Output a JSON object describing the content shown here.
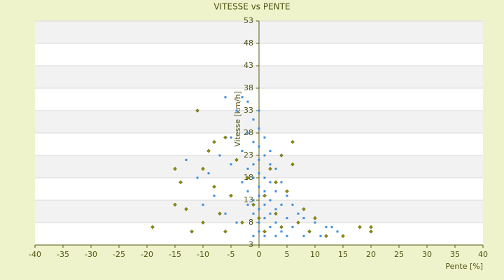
{
  "chart_data": {
    "type": "scatter",
    "title": "VITESSE vs PENTE",
    "x_label": "Pente [%]",
    "y_label": "Vitesse [km/h]",
    "xlim": [
      -40,
      40
    ],
    "xticks": [
      -40,
      -35,
      -30,
      -25,
      -20,
      -15,
      -10,
      -5,
      0,
      5,
      10,
      15,
      20,
      25,
      30,
      35,
      40
    ],
    "ylim": [
      3,
      53
    ],
    "yticks": [
      3,
      8,
      13,
      18,
      23,
      28,
      33,
      38,
      43,
      48,
      53
    ],
    "grid": true,
    "series": [
      {
        "color": "#3a8ede",
        "marker": "square",
        "x": [
          -3,
          -2,
          -4,
          -1,
          0,
          -2,
          1,
          -1,
          0,
          2,
          -3,
          1,
          0,
          -1,
          2,
          3,
          -2,
          0,
          1,
          -1,
          2,
          4,
          -3,
          0,
          1,
          3,
          -2,
          5,
          0,
          2,
          -1,
          4,
          6,
          1,
          3,
          0,
          7,
          2,
          -1,
          5,
          8,
          1,
          10,
          3,
          0,
          12,
          6,
          2,
          14,
          9,
          4,
          0,
          -1,
          1,
          3,
          5,
          8,
          -5,
          -7,
          -9,
          -11,
          -13,
          -8,
          -10,
          -6,
          -12,
          -4,
          -2,
          11,
          13,
          0,
          -6,
          -5
        ],
        "values": [
          36,
          35,
          33,
          31,
          29,
          28,
          27,
          26,
          25,
          24,
          24,
          23,
          22,
          21,
          21,
          20,
          20,
          19,
          18,
          18,
          17,
          17,
          17,
          16,
          15,
          15,
          15,
          14,
          14,
          13,
          13,
          12,
          12,
          12,
          11,
          11,
          10,
          10,
          10,
          9,
          9,
          9,
          8,
          8,
          8,
          7,
          7,
          7,
          6,
          6,
          6,
          6,
          5,
          5,
          5,
          5,
          5,
          21,
          23,
          19,
          18,
          22,
          14,
          12,
          10,
          6,
          8,
          12,
          5,
          7,
          33,
          36,
          27
        ]
      },
      {
        "color": "#8c8c00",
        "marker": "diamond",
        "x": [
          -19,
          -15,
          -14,
          -12,
          -11,
          -10,
          -9,
          -8,
          -7,
          -6,
          -5,
          -4,
          -3,
          -2,
          -1,
          0,
          1,
          2,
          3,
          4,
          5,
          6,
          7,
          8,
          9,
          10,
          12,
          15,
          18,
          20,
          20,
          -15,
          -13,
          -6,
          4,
          6,
          -8,
          -10,
          1,
          3
        ],
        "values": [
          7,
          12,
          17,
          6,
          33,
          20,
          24,
          16,
          10,
          27,
          14,
          22,
          8,
          18,
          12,
          9,
          6,
          20,
          10,
          7,
          15,
          26,
          8,
          11,
          6,
          9,
          5,
          5,
          7,
          7,
          6,
          20,
          11,
          6,
          23,
          21,
          26,
          8,
          14,
          17
        ]
      }
    ]
  }
}
